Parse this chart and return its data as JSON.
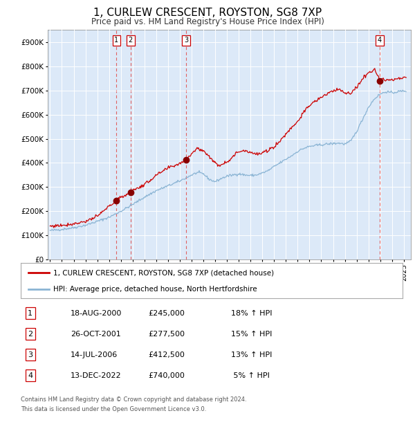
{
  "title": "1, CURLEW CRESCENT, ROYSTON, SG8 7XP",
  "subtitle": "Price paid vs. HM Land Registry's House Price Index (HPI)",
  "legend_line1": "1, CURLEW CRESCENT, ROYSTON, SG8 7XP (detached house)",
  "legend_line2": "HPI: Average price, detached house, North Hertfordshire",
  "footer1": "Contains HM Land Registry data © Crown copyright and database right 2024.",
  "footer2": "This data is licensed under the Open Government Licence v3.0.",
  "sales": [
    {
      "num": 1,
      "date": "18-AUG-2000",
      "price": 245000,
      "pct": "18% ↑ HPI",
      "x": 2000.63
    },
    {
      "num": 2,
      "date": "26-OCT-2001",
      "price": 277500,
      "pct": "15% ↑ HPI",
      "x": 2001.82
    },
    {
      "num": 3,
      "date": "14-JUL-2006",
      "price": 412500,
      "pct": "13% ↑ HPI",
      "x": 2006.54
    },
    {
      "num": 4,
      "date": "13-DEC-2022",
      "price": 740000,
      "pct": " 5% ↑ HPI",
      "x": 2022.95
    }
  ],
  "ylim": [
    0,
    950000
  ],
  "yticks": [
    0,
    100000,
    200000,
    300000,
    400000,
    500000,
    600000,
    700000,
    800000,
    900000
  ],
  "ytick_labels": [
    "£0",
    "£100K",
    "£200K",
    "£300K",
    "£400K",
    "£500K",
    "£600K",
    "£700K",
    "£800K",
    "£900K"
  ],
  "xlim_start": 1994.8,
  "xlim_end": 2025.6,
  "bg_color": "#dce9f8",
  "red_line_color": "#cc0000",
  "blue_line_color": "#8ab4d4",
  "dashed_line_color": "#e06060",
  "dot_color": "#880000",
  "grid_color": "#ffffff",
  "hpi_waypoints": [
    [
      1995.0,
      120000
    ],
    [
      1996.0,
      125000
    ],
    [
      1997.0,
      132000
    ],
    [
      1998.0,
      142000
    ],
    [
      1999.0,
      158000
    ],
    [
      2000.0,
      175000
    ],
    [
      2001.0,
      200000
    ],
    [
      2002.0,
      228000
    ],
    [
      2003.0,
      258000
    ],
    [
      2004.0,
      285000
    ],
    [
      2004.5,
      295000
    ],
    [
      2005.0,
      305000
    ],
    [
      2006.0,
      325000
    ],
    [
      2007.0,
      350000
    ],
    [
      2007.5,
      360000
    ],
    [
      2008.0,
      355000
    ],
    [
      2008.5,
      332000
    ],
    [
      2009.0,
      322000
    ],
    [
      2009.5,
      335000
    ],
    [
      2010.0,
      345000
    ],
    [
      2011.0,
      355000
    ],
    [
      2011.5,
      350000
    ],
    [
      2012.0,
      348000
    ],
    [
      2012.5,
      350000
    ],
    [
      2013.0,
      358000
    ],
    [
      2013.5,
      368000
    ],
    [
      2014.0,
      385000
    ],
    [
      2014.5,
      400000
    ],
    [
      2015.0,
      415000
    ],
    [
      2015.5,
      430000
    ],
    [
      2016.0,
      448000
    ],
    [
      2016.5,
      460000
    ],
    [
      2017.0,
      468000
    ],
    [
      2017.5,
      472000
    ],
    [
      2018.0,
      475000
    ],
    [
      2018.5,
      478000
    ],
    [
      2019.0,
      480000
    ],
    [
      2019.5,
      482000
    ],
    [
      2020.0,
      478000
    ],
    [
      2020.5,
      490000
    ],
    [
      2021.0,
      530000
    ],
    [
      2021.5,
      580000
    ],
    [
      2022.0,
      630000
    ],
    [
      2022.5,
      665000
    ],
    [
      2023.0,
      685000
    ],
    [
      2023.5,
      695000
    ],
    [
      2024.0,
      690000
    ],
    [
      2024.5,
      695000
    ],
    [
      2025.0,
      698000
    ]
  ],
  "red_waypoints": [
    [
      1995.0,
      138000
    ],
    [
      1996.0,
      142000
    ],
    [
      1997.0,
      148000
    ],
    [
      1998.0,
      158000
    ],
    [
      1999.0,
      178000
    ],
    [
      1999.5,
      200000
    ],
    [
      2000.0,
      220000
    ],
    [
      2000.63,
      245000
    ],
    [
      2001.0,
      258000
    ],
    [
      2001.82,
      277500
    ],
    [
      2002.0,
      285000
    ],
    [
      2003.0,
      310000
    ],
    [
      2004.0,
      348000
    ],
    [
      2005.0,
      378000
    ],
    [
      2006.0,
      398000
    ],
    [
      2006.54,
      412500
    ],
    [
      2007.0,
      440000
    ],
    [
      2007.5,
      460000
    ],
    [
      2008.0,
      450000
    ],
    [
      2008.5,
      428000
    ],
    [
      2009.0,
      398000
    ],
    [
      2009.3,
      390000
    ],
    [
      2010.0,
      405000
    ],
    [
      2010.5,
      425000
    ],
    [
      2011.0,
      448000
    ],
    [
      2011.5,
      452000
    ],
    [
      2012.0,
      445000
    ],
    [
      2012.5,
      435000
    ],
    [
      2013.0,
      440000
    ],
    [
      2013.5,
      452000
    ],
    [
      2014.0,
      468000
    ],
    [
      2014.5,
      490000
    ],
    [
      2015.0,
      520000
    ],
    [
      2015.5,
      548000
    ],
    [
      2016.0,
      572000
    ],
    [
      2016.5,
      608000
    ],
    [
      2017.0,
      638000
    ],
    [
      2017.5,
      655000
    ],
    [
      2018.0,
      672000
    ],
    [
      2018.5,
      685000
    ],
    [
      2019.0,
      698000
    ],
    [
      2019.5,
      705000
    ],
    [
      2020.0,
      692000
    ],
    [
      2020.5,
      685000
    ],
    [
      2021.0,
      712000
    ],
    [
      2021.5,
      748000
    ],
    [
      2022.0,
      772000
    ],
    [
      2022.5,
      792000
    ],
    [
      2022.95,
      740000
    ],
    [
      2023.0,
      748000
    ],
    [
      2023.5,
      745000
    ],
    [
      2024.0,
      742000
    ],
    [
      2024.5,
      748000
    ],
    [
      2025.0,
      752000
    ]
  ]
}
